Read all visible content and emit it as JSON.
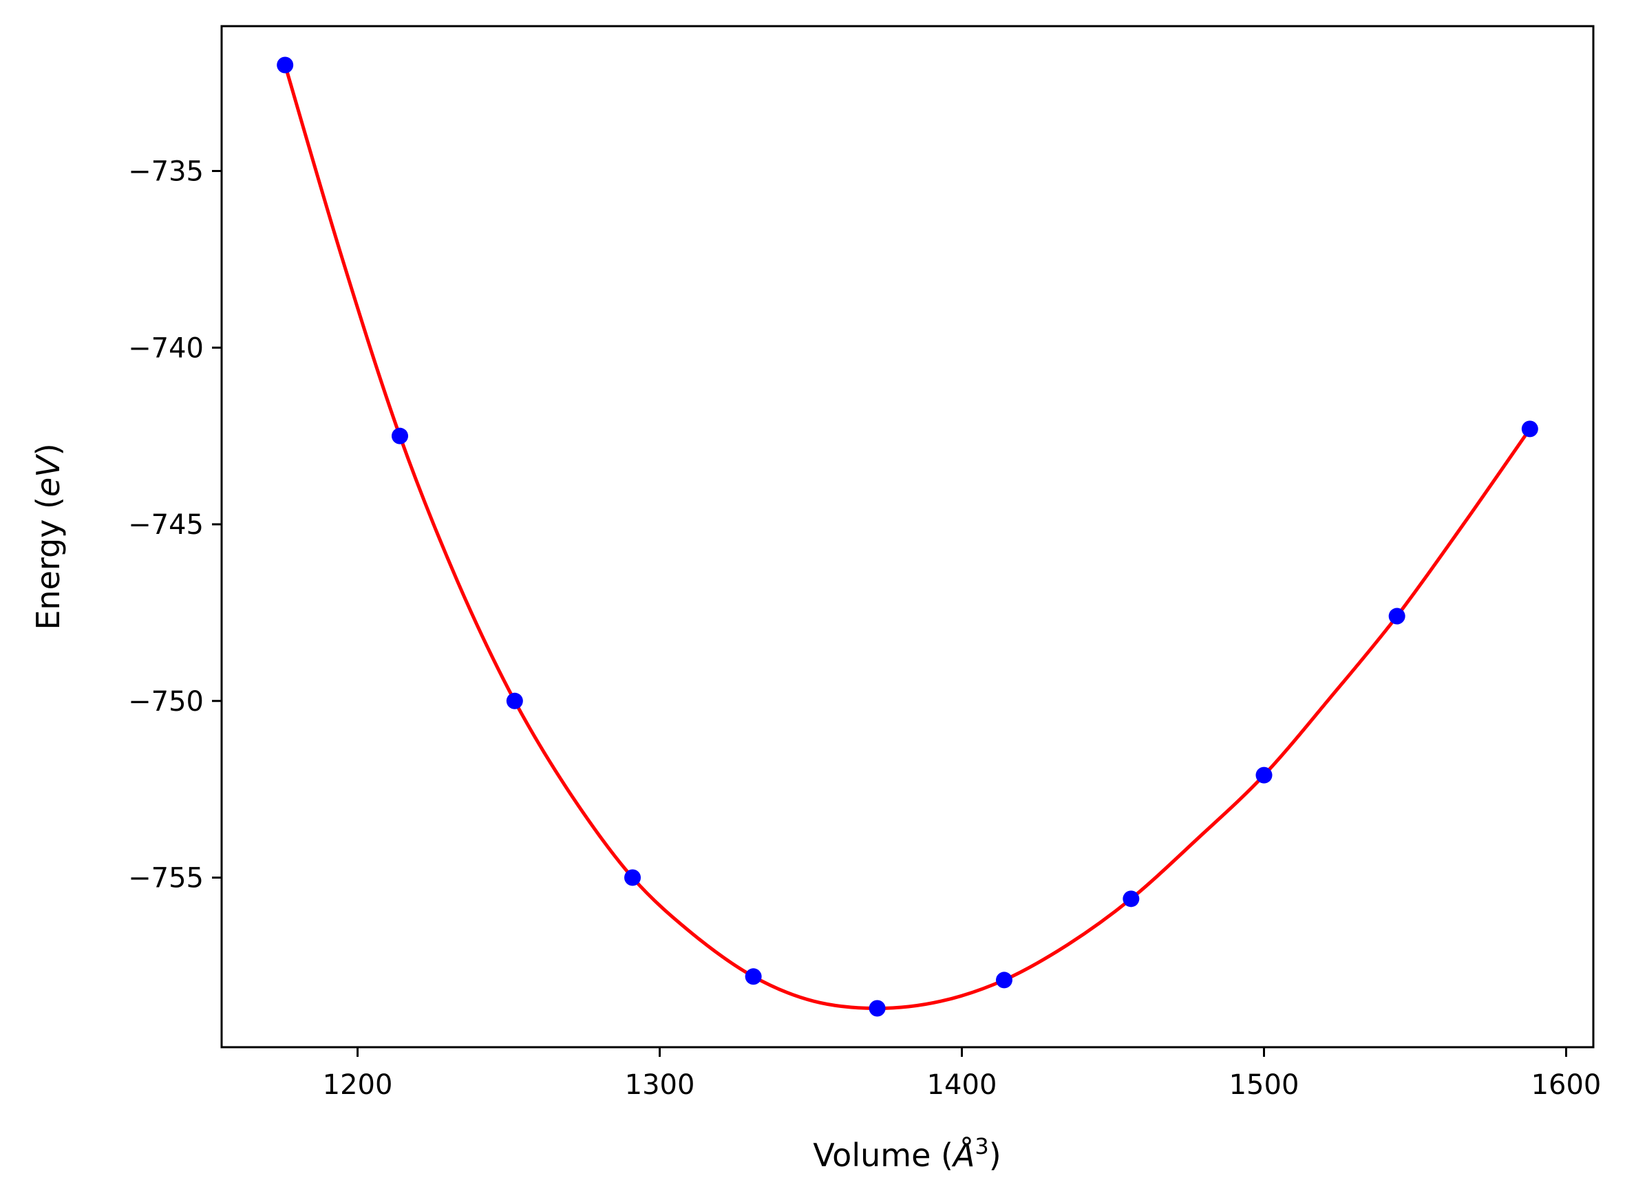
{
  "chart_data": {
    "type": "scatter",
    "xlabel": "Volume (Å³)",
    "ylabel": "Energy (eV)",
    "xlabel_parts": {
      "prefix": "Volume (",
      "var": "Å",
      "sup": "3",
      "suffix": ")"
    },
    "ylabel_parts": {
      "prefix": "Energy (",
      "var": "eV",
      "suffix": ")"
    },
    "xlim": [
      1155,
      1609
    ],
    "ylim": [
      -759.8,
      -730.9
    ],
    "x_ticks": [
      1200,
      1300,
      1400,
      1500,
      1600
    ],
    "y_ticks": [
      -735,
      -740,
      -745,
      -750,
      -755
    ],
    "x_tick_labels": [
      "1200",
      "1300",
      "1400",
      "1500",
      "1600"
    ],
    "y_tick_labels": [
      "−735",
      "−740",
      "−745",
      "−750",
      "−755"
    ],
    "grid": false,
    "series": [
      {
        "kind": "points",
        "color": "#0000ff",
        "x": [
          1176,
          1214,
          1252,
          1291,
          1331,
          1372,
          1414,
          1456,
          1500,
          1544,
          1588
        ],
        "y": [
          -732.0,
          -742.5,
          -750.0,
          -755.0,
          -757.8,
          -758.7,
          -757.9,
          -755.6,
          -752.1,
          -747.6,
          -742.3
        ]
      },
      {
        "kind": "fit-curve",
        "color": "#ff0000",
        "x": [
          1176,
          1195,
          1214,
          1233,
          1252,
          1271,
          1291,
          1311,
          1331,
          1351,
          1372,
          1393,
          1414,
          1435,
          1456,
          1478,
          1500,
          1522,
          1544,
          1566,
          1588
        ],
        "y": [
          -732.0,
          -737.5,
          -742.5,
          -746.6,
          -750.0,
          -752.7,
          -755.0,
          -756.6,
          -757.8,
          -758.5,
          -758.7,
          -758.5,
          -757.9,
          -756.9,
          -755.6,
          -753.9,
          -752.1,
          -749.9,
          -747.6,
          -745.0,
          -742.3
        ]
      }
    ]
  }
}
